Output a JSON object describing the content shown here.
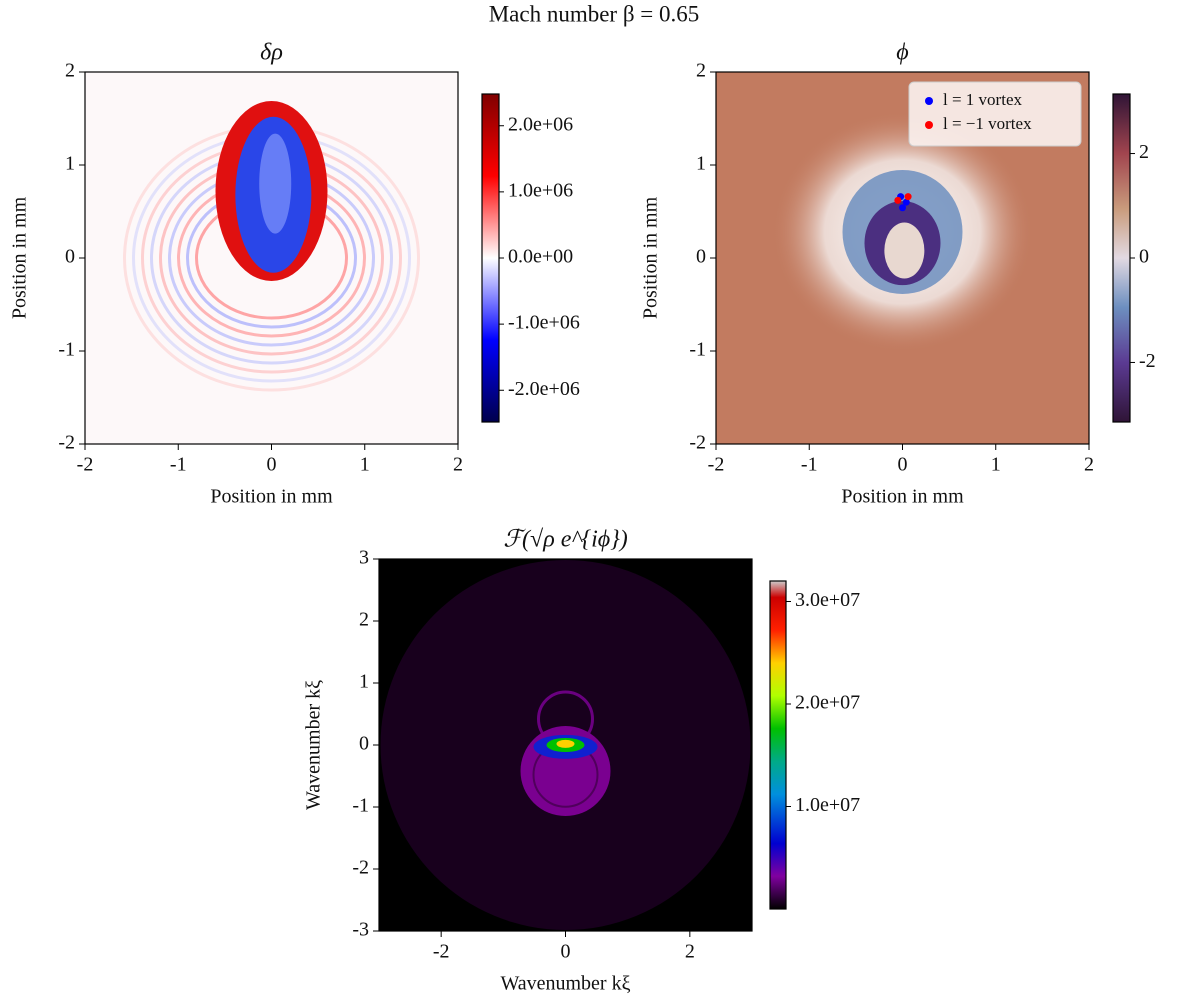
{
  "title": "Mach number β = 0.65",
  "chart_data": [
    {
      "type": "heatmap",
      "title": "δρ",
      "xlabel": "Position in mm",
      "ylabel": "Position in mm",
      "xlim": [
        -2,
        2
      ],
      "ylim": [
        -2,
        2
      ],
      "xticks": [
        -2,
        -1,
        0,
        1,
        2
      ],
      "yticks": [
        -2,
        -1,
        0,
        1,
        2
      ],
      "colormap": "seismic",
      "clim": [
        -2480000,
        2480000
      ],
      "cticks": [
        {
          "value": -2000000,
          "label": "-2.0e+06"
        },
        {
          "value": -1000000,
          "label": "-1.0e+06"
        },
        {
          "value": 0,
          "label": "0.0e+00"
        },
        {
          "value": 1000000,
          "label": "1.0e+06"
        },
        {
          "value": 2000000,
          "label": "2.0e+06"
        }
      ]
    },
    {
      "type": "heatmap",
      "title": "ϕ",
      "xlabel": "Position in mm",
      "ylabel": "Position in mm",
      "xlim": [
        -2,
        2
      ],
      "ylim": [
        -2,
        2
      ],
      "xticks": [
        -2,
        -1,
        0,
        1,
        2
      ],
      "yticks": [
        -2,
        -1,
        0,
        1,
        2
      ],
      "colormap": "twilight_shifted",
      "clim": [
        -3.14,
        3.14
      ],
      "cticks": [
        -2,
        0,
        2
      ],
      "legend": "upper right",
      "series": [
        {
          "name": "l = 1 vortex",
          "color": "#0000ff",
          "x": [
            -0.02,
            0.04,
            0.0
          ],
          "values": [
            0.66,
            0.6,
            0.54
          ]
        },
        {
          "name": "l = −1 vortex",
          "color": "#ff0000",
          "x": [
            -0.05,
            0.06
          ],
          "values": [
            0.62,
            0.66
          ]
        }
      ]
    },
    {
      "type": "heatmap",
      "title": "ℱ(√ρ e^{iϕ})",
      "xlabel": "Wavenumber kξ",
      "ylabel": "Wavenumber kξ",
      "xlim": [
        -3,
        3
      ],
      "ylim": [
        -3,
        3
      ],
      "xticks": [
        -2,
        0,
        2
      ],
      "yticks": [
        -3,
        -2,
        -1,
        0,
        1,
        2,
        3
      ],
      "colormap": "nipy_spectral",
      "clim": [
        0,
        32000000
      ],
      "cticks": [
        {
          "value": 10000000,
          "label": "1.0e+07"
        },
        {
          "value": 20000000,
          "label": "2.0e+07"
        },
        {
          "value": 30000000,
          "label": "3.0e+07"
        }
      ]
    }
  ]
}
